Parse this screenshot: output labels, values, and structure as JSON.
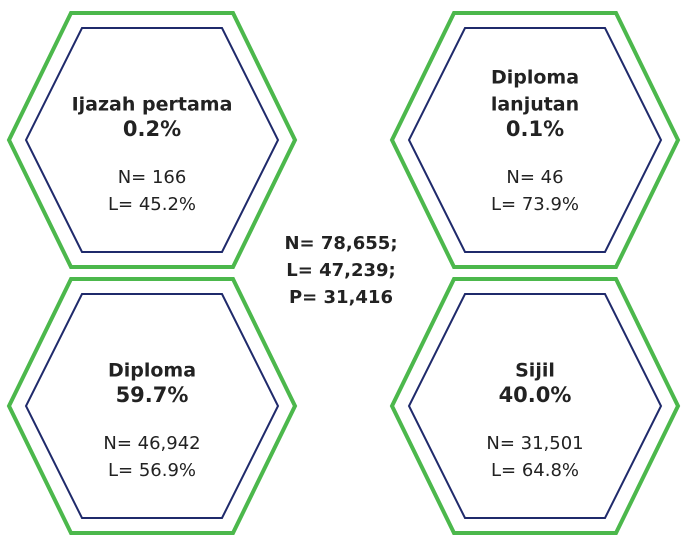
{
  "summary": [
    "N= 78,655;",
    "L= 47,239;",
    "P= 31,416"
  ],
  "cards": [
    {
      "label": [
        "Ijazah pertama"
      ],
      "percent": "0.2%",
      "n": "N= 166",
      "l": "L= 45.2%"
    },
    {
      "label": [
        "Diploma",
        "lanjutan"
      ],
      "percent": "0.1%",
      "n": "N= 46",
      "l": "L= 73.9%"
    },
    {
      "label": [
        "Diploma"
      ],
      "percent": "59.7%",
      "n": "N= 46,942",
      "l": "L= 56.9%"
    },
    {
      "label": [
        "Sijil"
      ],
      "percent": "40.0%",
      "n": "N= 31,501",
      "l": "L= 64.8%"
    }
  ]
}
